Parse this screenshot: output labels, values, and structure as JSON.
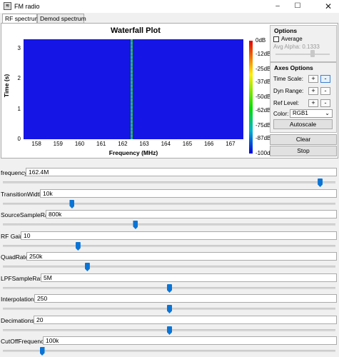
{
  "window": {
    "title": "FM radio",
    "app_icon": "app-icon",
    "controls": [
      "minimize-icon",
      "maximize-icon",
      "close-icon"
    ]
  },
  "tabs": [
    {
      "label": "RF spectrum",
      "active": true
    },
    {
      "label": "Demod spectrum",
      "active": false
    }
  ],
  "plot": {
    "title": "Waterfall Plot",
    "xlabel": "Frequency (MHz)",
    "ylabel": "Time (s)",
    "xticks": [
      "158",
      "159",
      "160",
      "161",
      "162",
      "163",
      "164",
      "165",
      "166",
      "167"
    ],
    "yticks": [
      "3",
      "2",
      "1",
      "0"
    ],
    "colorbar_ticks": [
      "0dB",
      "-12dB",
      "-25dB",
      "-37dB",
      "-50dB",
      "-62dB",
      "-75dB",
      "-87dB",
      "-100dB"
    ],
    "background_color": "#1515e6",
    "signal_color": "#2db84a"
  },
  "chart_data": {
    "type": "heatmap",
    "title": "Waterfall Plot",
    "xlabel": "Frequency (MHz)",
    "ylabel": "Time (s)",
    "xlim": [
      157.4,
      167.6
    ],
    "ylim": [
      0,
      3.3
    ],
    "x_ticks": [
      158,
      159,
      160,
      161,
      162,
      163,
      164,
      165,
      166,
      167
    ],
    "y_ticks": [
      0,
      1,
      2,
      3
    ],
    "colorbar": {
      "min_dB": -100,
      "max_dB": 0,
      "ticks": [
        0,
        -12,
        -25,
        -37,
        -50,
        -62,
        -75,
        -87,
        -100
      ]
    },
    "signal_frequency_mhz": 162.4
  },
  "options": {
    "header": "Options",
    "average_label": "Average",
    "average_checked": false,
    "avg_alpha_label": "Avg Alpha: 0.1333",
    "avg_alpha": 0.1333,
    "axes_header": "Axes Options",
    "time_scale_label": "Time Scale:",
    "dyn_range_label": "Dyn Range:",
    "ref_level_label": "Ref Level:",
    "plus": "+",
    "minus": "-",
    "color_label": "Color:",
    "color_value": "RGB1",
    "autoscale_label": "Autoscale",
    "clear_label": "Clear",
    "stop_label": "Stop"
  },
  "params": [
    {
      "label": "frequency:",
      "value": "162.4M",
      "slider": 0.953
    },
    {
      "label": "TransitionWidth:",
      "value": "10k",
      "slider": 0.207
    },
    {
      "label": "SourceSampleRate:",
      "value": "800k",
      "slider": 0.398
    },
    {
      "label": "RF Gain:",
      "value": "10",
      "slider": 0.225
    },
    {
      "label": "QuadRate:",
      "value": "250k",
      "slider": 0.253
    },
    {
      "label": "LPFSampleRate:",
      "value": "5M",
      "slider": 0.5
    },
    {
      "label": "Interpolation:",
      "value": "250",
      "slider": 0.5
    },
    {
      "label": "Decimations:",
      "value": "20",
      "slider": 0.5
    },
    {
      "label": "CutOffFrequency:",
      "value": "100k",
      "slider": 0.117
    }
  ]
}
